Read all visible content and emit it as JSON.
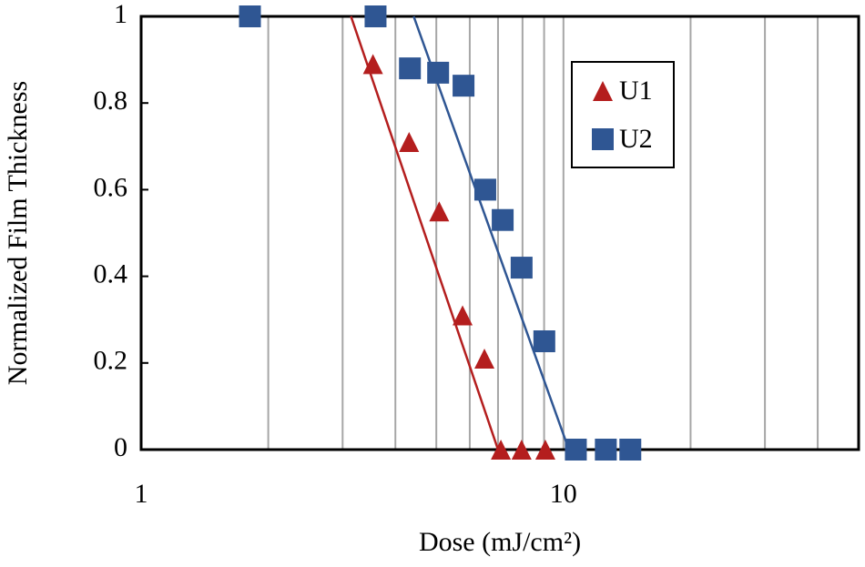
{
  "chart_data": {
    "type": "scatter",
    "xlabel": "Dose (mJ/cm²)",
    "ylabel": "Normalized Film Thickness",
    "xscale": "log",
    "xlim": [
      1,
      50
    ],
    "xticks": [
      1,
      10
    ],
    "xminor": [
      2,
      3,
      4,
      5,
      6,
      7,
      8,
      9,
      20,
      30,
      40
    ],
    "ylim": [
      0,
      1
    ],
    "yticks": [
      0,
      0.2,
      0.4,
      0.6,
      0.8,
      1
    ],
    "grid": "x",
    "legend": "upper right",
    "series": [
      {
        "name": "U1",
        "color": "#b41e1e",
        "marker": "triangle",
        "x": [
          3.54,
          4.31,
          5.08,
          5.77,
          6.5,
          7.11,
          7.96,
          9.06
        ],
        "values": [
          0.89,
          0.71,
          0.55,
          0.31,
          0.21,
          0,
          0,
          0
        ],
        "fit": {
          "x": [
            3.14,
            7.0
          ],
          "values": [
            1,
            0
          ]
        }
      },
      {
        "name": "U2",
        "color": "#2f5693",
        "marker": "square",
        "x": [
          1.81,
          3.59,
          4.33,
          5.05,
          5.8,
          6.53,
          7.18,
          7.96,
          9.01,
          10.7,
          12.6,
          14.4
        ],
        "values": [
          1,
          1,
          0.88,
          0.87,
          0.84,
          0.6,
          0.53,
          0.42,
          0.25,
          0,
          0,
          0
        ],
        "fit": {
          "x": [
            4.42,
            10.3
          ],
          "values": [
            1,
            0
          ]
        }
      }
    ]
  }
}
